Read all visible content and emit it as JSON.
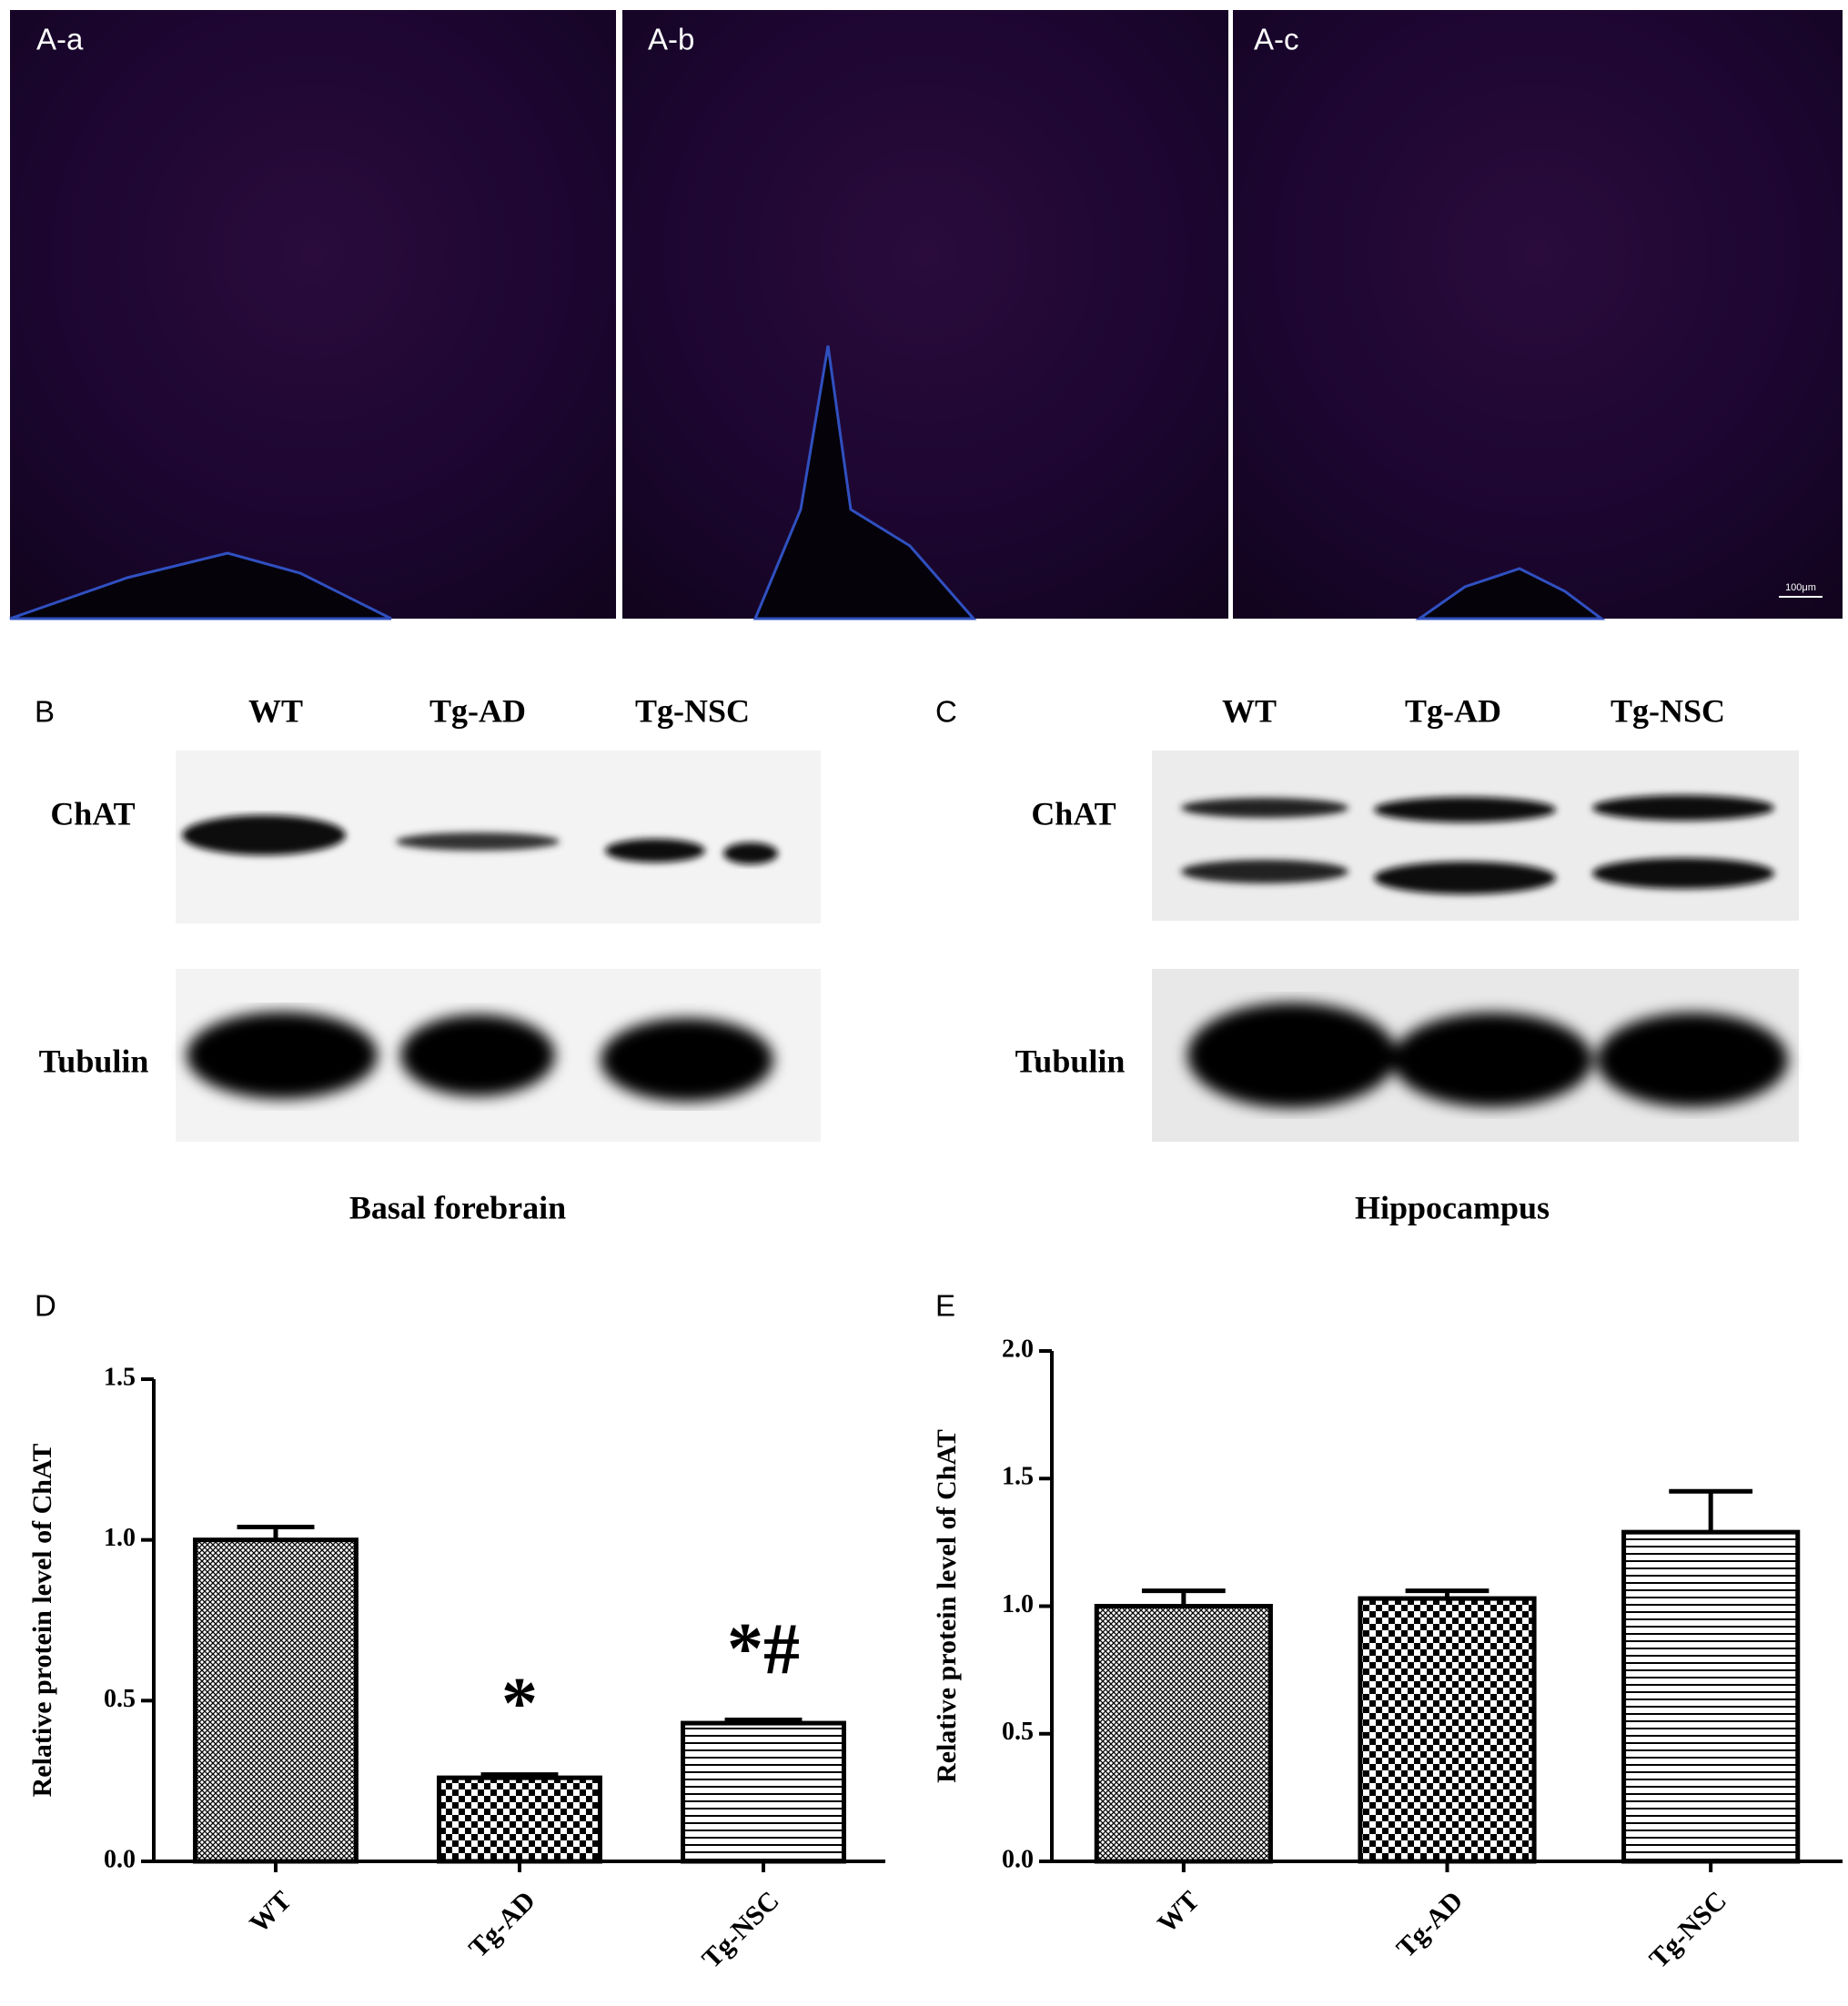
{
  "micrographs": [
    {
      "label": "A-a"
    },
    {
      "label": "A-b"
    },
    {
      "label": "A-c",
      "scale_bar": "100μm"
    }
  ],
  "blots": [
    {
      "label": "B",
      "lanes": [
        "WT",
        "Tg-AD",
        "Tg-NSC"
      ],
      "rows": [
        "ChAT",
        "Tubulin"
      ],
      "caption": "Basal forebrain"
    },
    {
      "label": "C",
      "lanes": [
        "WT",
        "Tg-AD",
        "Tg-NSC"
      ],
      "rows": [
        "ChAT",
        "Tubulin"
      ],
      "caption": "Hippocampus"
    }
  ],
  "chart_data": [
    {
      "type": "bar",
      "panel_label": "D",
      "y_label": "Relative protein level of ChAT",
      "categories": [
        "WT",
        "Tg-AD",
        "Tg-NSC"
      ],
      "values": [
        1.0,
        0.26,
        0.43
      ],
      "errors": [
        0.04,
        0.01,
        0.01
      ],
      "patterns": [
        "crosshatch",
        "checker",
        "hlines"
      ],
      "annotations": [
        {
          "category": "Tg-AD",
          "text": "*"
        },
        {
          "category": "Tg-NSC",
          "text": "*#"
        }
      ],
      "ylim": [
        0,
        1.5
      ],
      "yticks": [
        {
          "value": 0,
          "label": "0.0"
        },
        0.5,
        {
          "value": 1,
          "label": "1.0"
        },
        1.5
      ]
    },
    {
      "type": "bar",
      "panel_label": "E",
      "y_label": "Relative protein level of ChAT",
      "categories": [
        "WT",
        "Tg-AD",
        "Tg-NSC"
      ],
      "values": [
        1.0,
        1.03,
        1.29
      ],
      "errors": [
        0.06,
        0.03,
        0.16
      ],
      "patterns": [
        "crosshatch",
        "checker",
        "hlines"
      ],
      "ylim": [
        0,
        2
      ],
      "yticks": [
        {
          "value": 0,
          "label": "0.0"
        },
        0.5,
        {
          "value": 1,
          "label": "1.0"
        },
        1.5,
        {
          "value": 2,
          "label": "2.0"
        }
      ]
    }
  ]
}
